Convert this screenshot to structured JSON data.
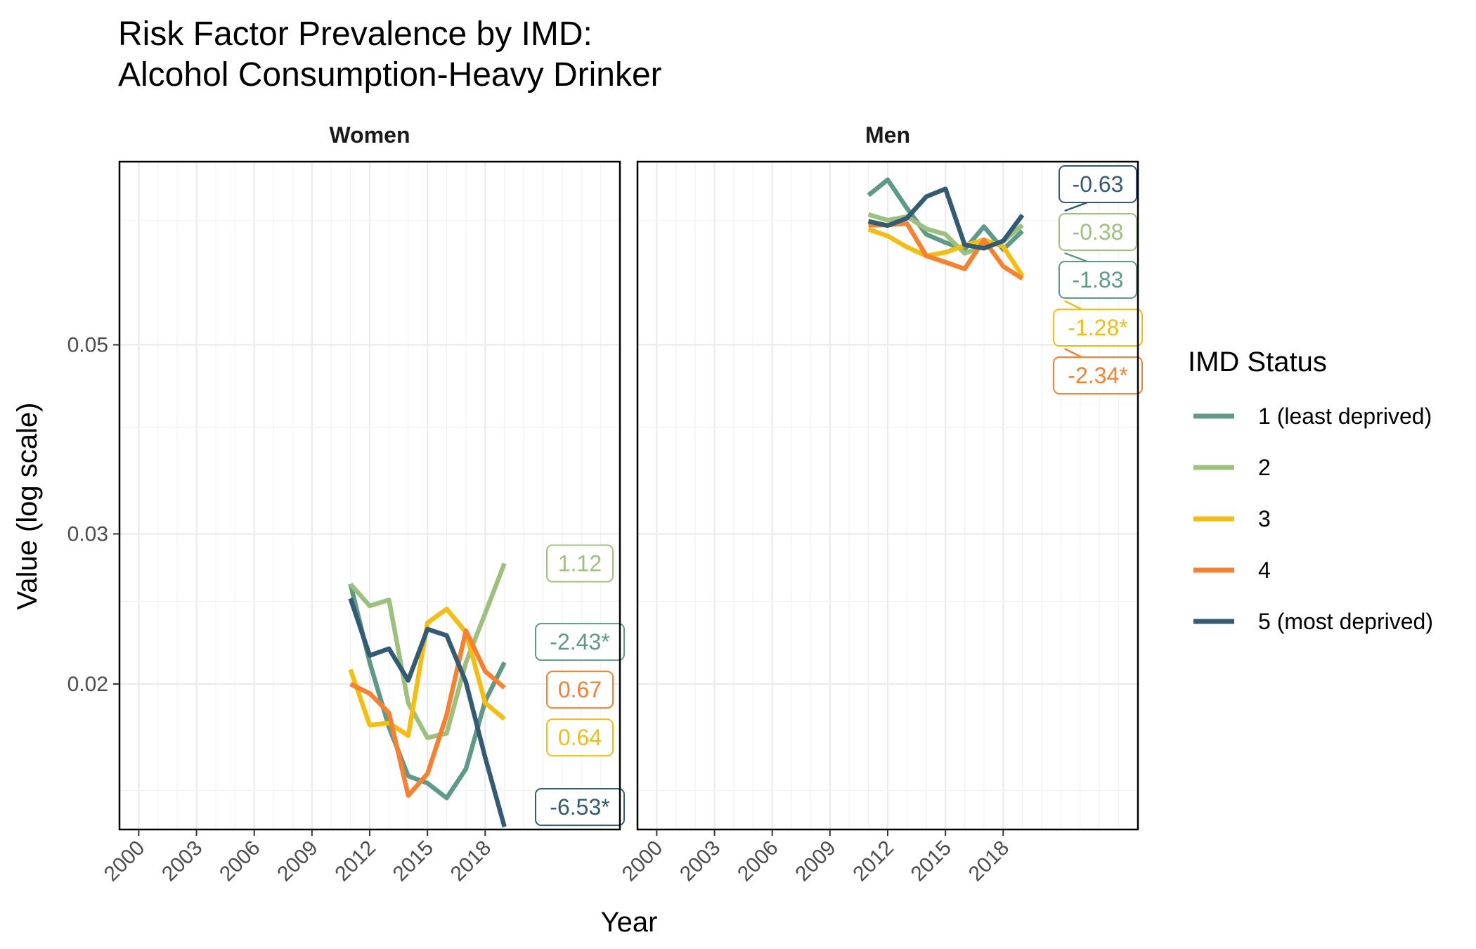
{
  "chart_data": {
    "type": "line",
    "title": "Risk Factor Prevalence by IMD:",
    "subtitle": "Alcohol Consumption-Heavy Drinker",
    "xlabel": "Year",
    "ylabel": "Value (log scale)",
    "y_scale": "log",
    "xlim": [
      1999,
      2025
    ],
    "ylim": [
      0.0135,
      0.082
    ],
    "x_ticks": [
      "2000",
      "2003",
      "2006",
      "2009",
      "2012",
      "2015",
      "2018"
    ],
    "y_ticks": [
      "0.02",
      "0.03",
      "0.05"
    ],
    "grid": true,
    "legend": {
      "title": "IMD Status",
      "placement": "right",
      "entries": [
        {
          "label": "1 (least deprived)",
          "color": "#5e9a87"
        },
        {
          "label": "2",
          "color": "#9cc17d"
        },
        {
          "label": "3",
          "color": "#f5bd0f"
        },
        {
          "label": "4",
          "color": "#f7812f"
        },
        {
          "label": "5 (most deprived)",
          "color": "#335c74"
        }
      ]
    },
    "panels": [
      {
        "name": "Women",
        "x": [
          2011,
          2012,
          2013,
          2014,
          2015,
          2016,
          2017,
          2018,
          2019
        ],
        "series": [
          {
            "name": "1 (least deprived)",
            "values": [
              0.0262,
              0.0212,
              0.0178,
              0.0156,
              0.0153,
              0.0147,
              0.0159,
              0.0191,
              0.0212
            ],
            "label": "-2.43*"
          },
          {
            "name": "2",
            "values": [
              0.0262,
              0.0247,
              0.0251,
              0.019,
              0.0173,
              0.0175,
              0.0212,
              0.0242,
              0.0277
            ],
            "label": "1.12"
          },
          {
            "name": "3",
            "values": [
              0.0208,
              0.0179,
              0.018,
              0.0174,
              0.0236,
              0.0245,
              0.023,
              0.019,
              0.0182
            ],
            "label": "0.64"
          },
          {
            "name": "4",
            "values": [
              0.02,
              0.0195,
              0.0185,
              0.0148,
              0.0157,
              0.0184,
              0.0231,
              0.0207,
              0.0198
            ],
            "label": "0.67"
          },
          {
            "name": "5 (most deprived)",
            "values": [
              0.0252,
              0.0216,
              0.022,
              0.0202,
              0.0232,
              0.0228,
              0.0201,
              0.0164,
              0.0136
            ],
            "label": "-6.53*"
          }
        ]
      },
      {
        "name": "Men",
        "x": [
          2011,
          2012,
          2013,
          2014,
          2015,
          2016,
          2017,
          2018,
          2019
        ],
        "series": [
          {
            "name": "1 (least deprived)",
            "values": [
              0.0749,
              0.0781,
              0.0723,
              0.0674,
              0.0659,
              0.0647,
              0.0688,
              0.0647,
              0.068
            ],
            "label": "-1.83"
          },
          {
            "name": "2",
            "values": [
              0.0711,
              0.07,
              0.0707,
              0.0684,
              0.0674,
              0.064,
              0.0653,
              0.0661,
              0.0691
            ],
            "label": "-0.38"
          },
          {
            "name": "3",
            "values": [
              0.0683,
              0.0671,
              0.0651,
              0.0636,
              0.0642,
              0.0654,
              0.0664,
              0.0652,
              0.0602
            ],
            "label": "-1.28*"
          },
          {
            "name": "4",
            "values": [
              0.0691,
              0.0691,
              0.0694,
              0.0636,
              0.0625,
              0.0614,
              0.0664,
              0.0618,
              0.0598
            ],
            "label": "-2.34*"
          },
          {
            "name": "5 (most deprived)",
            "values": [
              0.0698,
              0.069,
              0.0704,
              0.0746,
              0.0762,
              0.0655,
              0.0649,
              0.0662,
              0.071
            ],
            "label": "-0.63"
          }
        ]
      }
    ]
  }
}
